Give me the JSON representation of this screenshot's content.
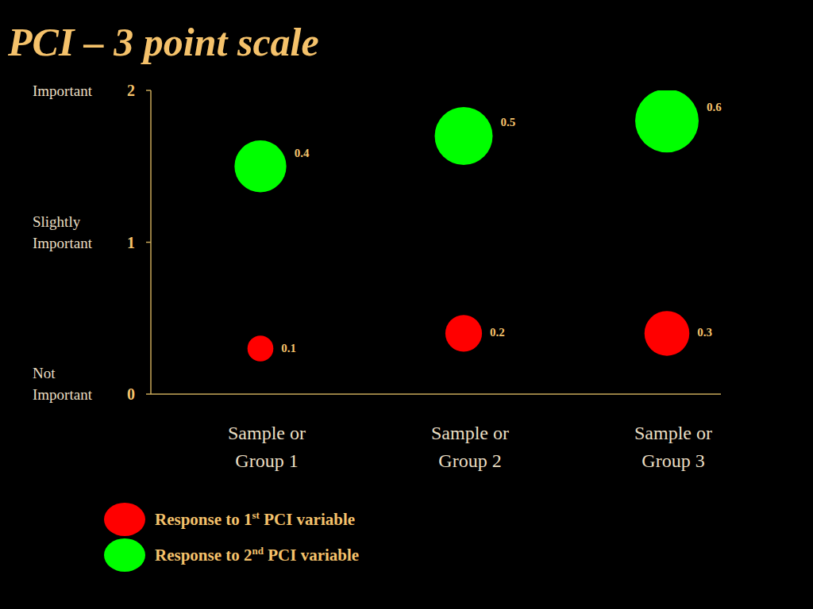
{
  "chart_data": {
    "type": "bubble",
    "title": "PCI – 3 point scale",
    "categories": [
      "Sample or Group 1",
      "Sample or Group 2",
      "Sample or Group 3"
    ],
    "scale_labels": [
      "Not Important",
      "Slightly Important",
      "Important"
    ],
    "ylim": [
      0,
      2
    ],
    "yticks": [
      0,
      1,
      2
    ],
    "series": [
      {
        "name": "Response to 1st PCI variable",
        "color": "#ff0000",
        "values": [
          0.3,
          0.4,
          0.4
        ],
        "sizes": [
          0.1,
          0.2,
          0.3
        ]
      },
      {
        "name": "Response to 2nd PCI variable",
        "color": "#00ff00",
        "values": [
          1.5,
          1.7,
          1.8
        ],
        "sizes": [
          0.4,
          0.5,
          0.6
        ]
      }
    ],
    "data_labels": true,
    "legend": "bottom"
  }
}
